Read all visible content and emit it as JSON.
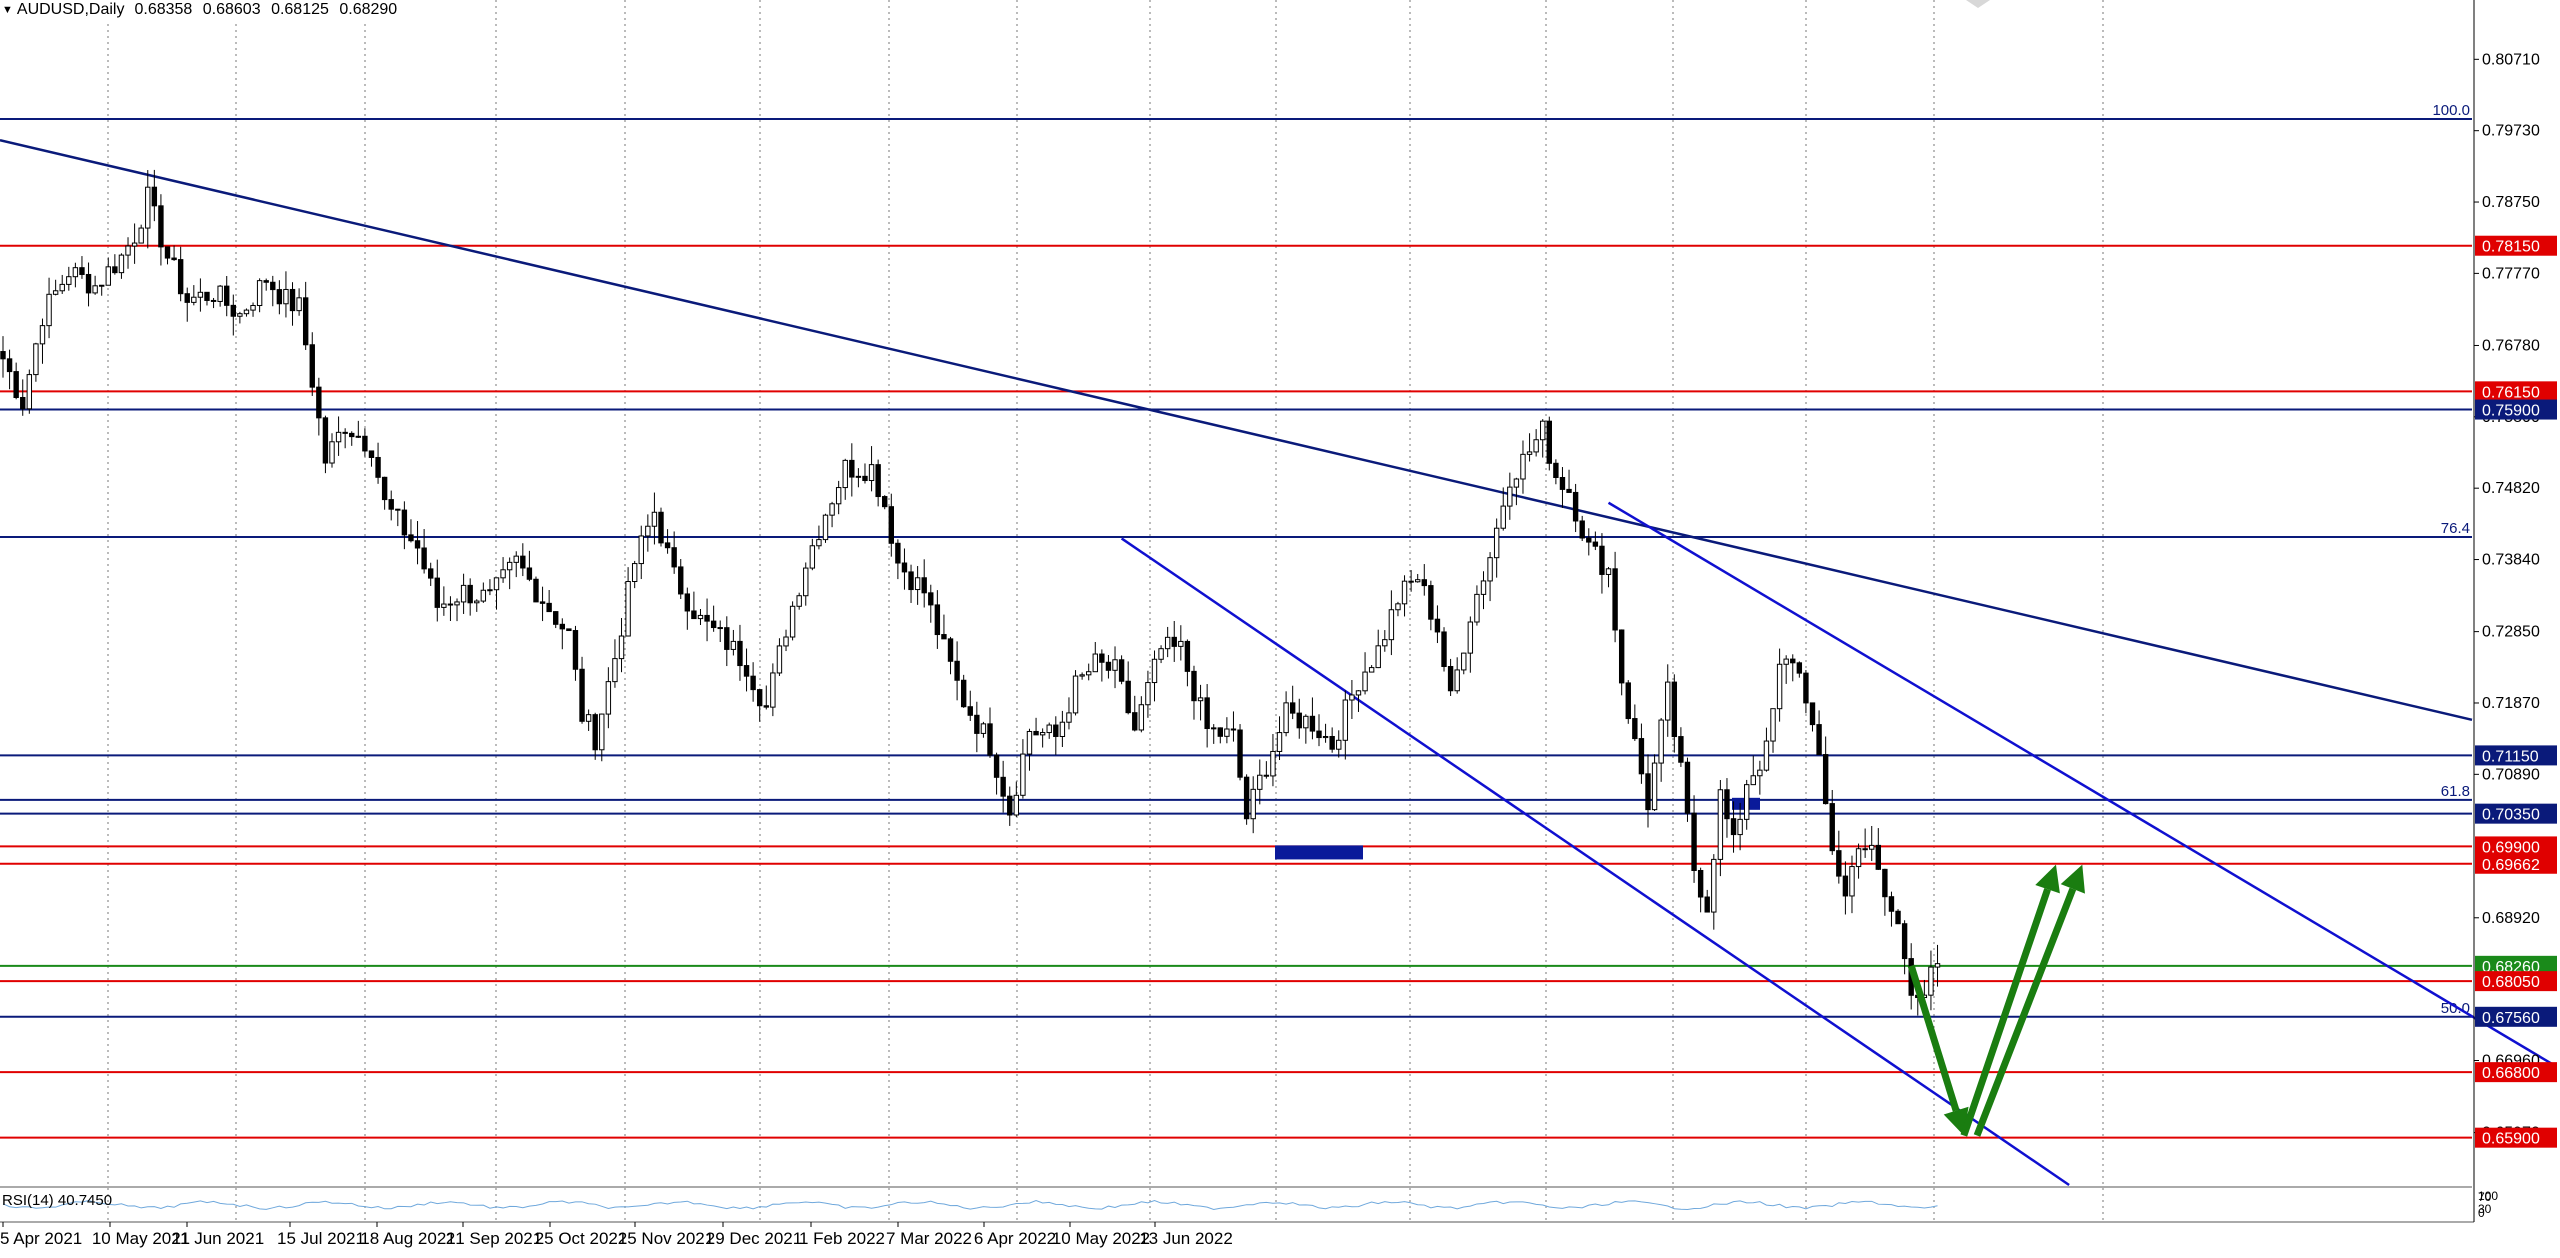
{
  "header": {
    "symbol": "AUDUSD,Daily",
    "ohlc": [
      "0.68358",
      "0.68603",
      "0.68125",
      "0.68290"
    ]
  },
  "chart_data": {
    "type": "candlestick",
    "price_range": [
      0.6525,
      0.8125
    ],
    "price_ticks": [
      "0.80710",
      "0.79730",
      "0.78750",
      "0.77770",
      "0.76780",
      "0.75800",
      "0.74820",
      "0.73840",
      "0.72850",
      "0.71870",
      "0.70890",
      "0.68920",
      "0.66960",
      "0.65970"
    ],
    "date_ticks": [
      "5 Apr 2021",
      "10 May 2021",
      "11 Jun 2021",
      "15 Jul 2021",
      "18 Aug 2021",
      "21 Sep 2021",
      "25 Oct 2021",
      "25 Nov 2021",
      "29 Dec 2021",
      "1 Feb 2022",
      "7 Mar 2022",
      "6 Apr 2022",
      "10 May 2022",
      "13 Jun 2022"
    ],
    "colors": {
      "blue_level": "#0a1a7a",
      "red_level": "#e00000",
      "green_level": "#1a8a1a",
      "channel": "#1010d0",
      "arrow": "#1a7d10",
      "candle": "#000000"
    },
    "horizontal_levels": [
      {
        "price": 0.7989,
        "color": "blue",
        "label": "",
        "fib": "100.0"
      },
      {
        "price": 0.7815,
        "color": "red",
        "label": "0.78150",
        "fib": ""
      },
      {
        "price": 0.7615,
        "color": "red",
        "label": "0.76150",
        "fib": ""
      },
      {
        "price": 0.759,
        "color": "blue",
        "label": "0.75900",
        "fib": ""
      },
      {
        "price": 0.7415,
        "color": "blue",
        "label": "",
        "fib": "76.4"
      },
      {
        "price": 0.7115,
        "color": "blue",
        "label": "0.71150",
        "fib": ""
      },
      {
        "price": 0.7054,
        "color": "blue",
        "label": "",
        "fib": "61.8"
      },
      {
        "price": 0.7035,
        "color": "blue",
        "label": "0.70350",
        "fib": ""
      },
      {
        "price": 0.699,
        "color": "red",
        "label": "0.69900",
        "fib": ""
      },
      {
        "price": 0.69662,
        "color": "red",
        "label": "0.69662",
        "fib": ""
      },
      {
        "price": 0.6826,
        "color": "green",
        "label": "0.68260",
        "fib": ""
      },
      {
        "price": 0.6805,
        "color": "red",
        "label": "0.68050",
        "fib": ""
      },
      {
        "price": 0.6756,
        "color": "blue",
        "label": "0.67560",
        "fib": "50.0"
      },
      {
        "price": 0.668,
        "color": "red",
        "label": "0.66800",
        "fib": ""
      },
      {
        "price": 0.659,
        "color": "red",
        "label": "0.65900",
        "fib": ""
      }
    ],
    "trendlines": [
      {
        "name": "long-term-downtrend",
        "from": {
          "date": "5 Apr 2021",
          "price": 0.7959
        },
        "to": {
          "date": "13 Jun 2022",
          "price": 0.7588
        },
        "ext_index": 388
      },
      {
        "name": "channel-lower",
        "from": {
          "index": 170,
          "price": 0.7413
        },
        "to": {
          "index": 314,
          "price": 0.6525
        }
      },
      {
        "name": "channel-upper",
        "from": {
          "index": 244,
          "price": 0.7462
        },
        "to": {
          "index": 388,
          "price": 0.6688
        }
      }
    ],
    "forecast_arrows": [
      {
        "from": {
          "index": 290,
          "price": 0.6826
        },
        "to": {
          "index": 298,
          "price": 0.6593
        }
      },
      {
        "from": {
          "index": 298,
          "price": 0.6593
        },
        "to": {
          "index": 312,
          "price": 0.6965
        }
      },
      {
        "from": {
          "index": 300,
          "price": 0.6593
        },
        "to": {
          "index": 316,
          "price": 0.6965
        }
      }
    ],
    "candles_anchor": [
      [
        0,
        0.766
      ],
      [
        3,
        0.76
      ],
      [
        6,
        0.772
      ],
      [
        10,
        0.778
      ],
      [
        14,
        0.776
      ],
      [
        18,
        0.78
      ],
      [
        20,
        0.783
      ],
      [
        22,
        0.788
      ],
      [
        25,
        0.78
      ],
      [
        28,
        0.774
      ],
      [
        32,
        0.775
      ],
      [
        36,
        0.772
      ],
      [
        40,
        0.777
      ],
      [
        43,
        0.774
      ],
      [
        45,
        0.773
      ],
      [
        47,
        0.763
      ],
      [
        49,
        0.752
      ],
      [
        52,
        0.757
      ],
      [
        56,
        0.754
      ],
      [
        58,
        0.746
      ],
      [
        63,
        0.74
      ],
      [
        66,
        0.732
      ],
      [
        70,
        0.734
      ],
      [
        74,
        0.733
      ],
      [
        78,
        0.738
      ],
      [
        82,
        0.733
      ],
      [
        86,
        0.728
      ],
      [
        88,
        0.717
      ],
      [
        90,
        0.714
      ],
      [
        93,
        0.725
      ],
      [
        96,
        0.738
      ],
      [
        99,
        0.745
      ],
      [
        102,
        0.736
      ],
      [
        106,
        0.73
      ],
      [
        110,
        0.727
      ],
      [
        113,
        0.724
      ],
      [
        116,
        0.718
      ],
      [
        119,
        0.729
      ],
      [
        122,
        0.738
      ],
      [
        125,
        0.745
      ],
      [
        128,
        0.751
      ],
      [
        132,
        0.751
      ],
      [
        134,
        0.746
      ],
      [
        136,
        0.738
      ],
      [
        140,
        0.734
      ],
      [
        143,
        0.726
      ],
      [
        146,
        0.719
      ],
      [
        150,
        0.713
      ],
      [
        153,
        0.704
      ],
      [
        156,
        0.715
      ],
      [
        160,
        0.714
      ],
      [
        163,
        0.721
      ],
      [
        166,
        0.724
      ],
      [
        169,
        0.723
      ],
      [
        172,
        0.715
      ],
      [
        176,
        0.726
      ],
      [
        179,
        0.726
      ],
      [
        183,
        0.715
      ],
      [
        187,
        0.714
      ],
      [
        189,
        0.703
      ],
      [
        191,
        0.708
      ],
      [
        195,
        0.717
      ],
      [
        199,
        0.716
      ],
      [
        202,
        0.713
      ],
      [
        206,
        0.722
      ],
      [
        209,
        0.726
      ],
      [
        212,
        0.733
      ],
      [
        215,
        0.736
      ],
      [
        218,
        0.729
      ],
      [
        220,
        0.719
      ],
      [
        223,
        0.731
      ],
      [
        226,
        0.739
      ],
      [
        229,
        0.75
      ],
      [
        231,
        0.752
      ],
      [
        234,
        0.756
      ],
      [
        236,
        0.75
      ],
      [
        238,
        0.748
      ],
      [
        241,
        0.74
      ],
      [
        244,
        0.737
      ],
      [
        246,
        0.722
      ],
      [
        248,
        0.713
      ],
      [
        250,
        0.705
      ],
      [
        253,
        0.72
      ],
      [
        255,
        0.709
      ],
      [
        257,
        0.696
      ],
      [
        259,
        0.691
      ],
      [
        261,
        0.706
      ],
      [
        263,
        0.699
      ],
      [
        265,
        0.708
      ],
      [
        268,
        0.712
      ],
      [
        270,
        0.723
      ],
      [
        272,
        0.725
      ],
      [
        274,
        0.72
      ],
      [
        276,
        0.71
      ],
      [
        278,
        0.699
      ],
      [
        280,
        0.692
      ],
      [
        282,
        0.7
      ],
      [
        284,
        0.698
      ],
      [
        286,
        0.692
      ],
      [
        288,
        0.688
      ],
      [
        290,
        0.68
      ],
      [
        292,
        0.679
      ],
      [
        294,
        0.6829
      ]
    ]
  },
  "indicator": {
    "label": "RSI(14) 40.7450",
    "scale": [
      "100",
      "70",
      "30",
      "0"
    ]
  }
}
